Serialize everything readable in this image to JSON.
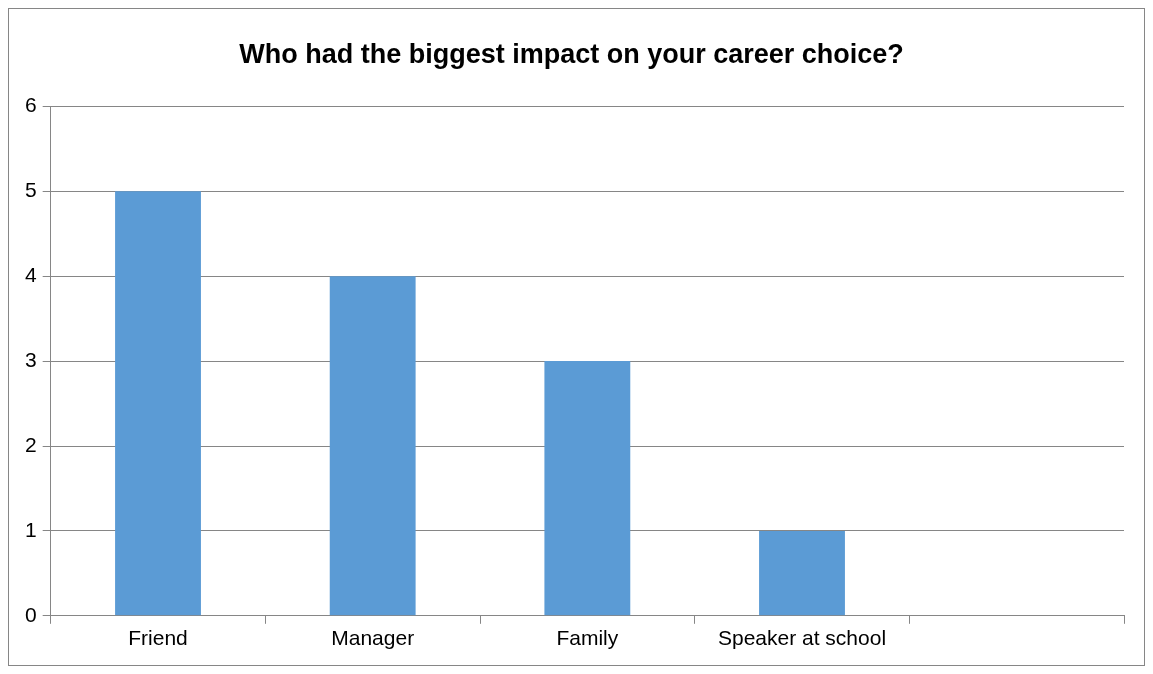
{
  "chart_data": {
    "type": "bar",
    "title": "Who had the biggest impact on your career choice?",
    "categories": [
      "Friend",
      "Manager",
      "Family",
      "Speaker at school",
      null
    ],
    "values": [
      5,
      4,
      3,
      1,
      null
    ],
    "color": "#5b9bd5",
    "ylim": [
      0,
      6
    ],
    "yticks": [
      0,
      1,
      2,
      3,
      4,
      5,
      6
    ],
    "grid": "y",
    "legend": false
  }
}
